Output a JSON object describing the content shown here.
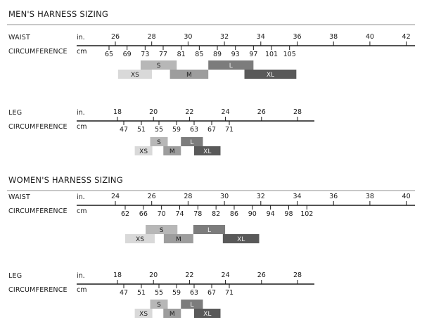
{
  "colors": {
    "XS": "#d9d9d9",
    "S": "#b7b7b7",
    "M": "#9d9d9d",
    "L": "#7c7c7c",
    "XL": "#595959",
    "line": "#1a1a1a",
    "rule": "#b5b5b5"
  },
  "sections": [
    {
      "title": "MEN'S HARNESS SIZING",
      "rows": [
        {
          "label_top": "WAIST",
          "label_bottom": "CIRCUMFERENCE",
          "unit_in": "in.",
          "unit_cm": "cm",
          "in_ticks": [
            "26",
            "28",
            "30",
            "32",
            "34",
            "36",
            "38",
            "40",
            "42"
          ],
          "cm_ticks": [
            "65",
            "69",
            "73",
            "77",
            "81",
            "85",
            "89",
            "93",
            "97",
            "101",
            "105"
          ],
          "sizes": [
            {
              "name": "S",
              "range_cm": [
                72,
                80
              ]
            },
            {
              "name": "L",
              "range_cm": [
                87,
                97
              ]
            },
            {
              "name": "XS",
              "range_cm": [
                67,
                74.5
              ]
            },
            {
              "name": "M",
              "range_cm": [
                78.5,
                87
              ]
            },
            {
              "name": "XL",
              "range_cm": [
                95,
                106.5
              ]
            }
          ]
        },
        {
          "label_top": "LEG",
          "label_bottom": "CIRCUMFERENCE",
          "unit_in": "in.",
          "unit_cm": "cm",
          "in_ticks": [
            "18",
            "20",
            "22",
            "24",
            "26",
            "28"
          ],
          "cm_ticks": [
            "47",
            "51",
            "55",
            "59",
            "63",
            "67",
            "71"
          ],
          "sizes": [
            {
              "name": "S",
              "range_cm": [
                53,
                57
              ]
            },
            {
              "name": "L",
              "range_cm": [
                60,
                65
              ]
            },
            {
              "name": "XS",
              "range_cm": [
                49.5,
                53.5
              ]
            },
            {
              "name": "M",
              "range_cm": [
                56,
                60
              ]
            },
            {
              "name": "XL",
              "range_cm": [
                63,
                69
              ]
            }
          ]
        }
      ]
    },
    {
      "title": "WOMEN'S HARNESS SIZING",
      "rows": [
        {
          "label_top": "WAIST",
          "label_bottom": "CIRCUMFERENCE",
          "unit_in": "in.",
          "unit_cm": "cm",
          "in_ticks": [
            "24",
            "26",
            "28",
            "30",
            "32",
            "34",
            "36",
            "38",
            "40"
          ],
          "cm_ticks": [
            "62",
            "66",
            "70",
            "74",
            "78",
            "82",
            "86",
            "90",
            "94",
            "98",
            "102"
          ],
          "sizes": [
            {
              "name": "S",
              "range_cm": [
                66.5,
                73.5
              ]
            },
            {
              "name": "L",
              "range_cm": [
                77,
                84
              ]
            },
            {
              "name": "XS",
              "range_cm": [
                62,
                68.5
              ]
            },
            {
              "name": "M",
              "range_cm": [
                70.5,
                77
              ]
            },
            {
              "name": "XL",
              "range_cm": [
                83.5,
                91.5
              ]
            }
          ]
        },
        {
          "label_top": "LEG",
          "label_bottom": "CIRCUMFERENCE",
          "unit_in": "in.",
          "unit_cm": "cm",
          "in_ticks": [
            "18",
            "20",
            "22",
            "24",
            "26",
            "28"
          ],
          "cm_ticks": [
            "47",
            "51",
            "55",
            "59",
            "63",
            "67",
            "71"
          ],
          "sizes": [
            {
              "name": "S",
              "range_cm": [
                53,
                57
              ]
            },
            {
              "name": "L",
              "range_cm": [
                60,
                65
              ]
            },
            {
              "name": "XS",
              "range_cm": [
                49.5,
                53.5
              ]
            },
            {
              "name": "M",
              "range_cm": [
                56,
                60
              ]
            },
            {
              "name": "XL",
              "range_cm": [
                63,
                69
              ]
            }
          ]
        }
      ]
    }
  ]
}
